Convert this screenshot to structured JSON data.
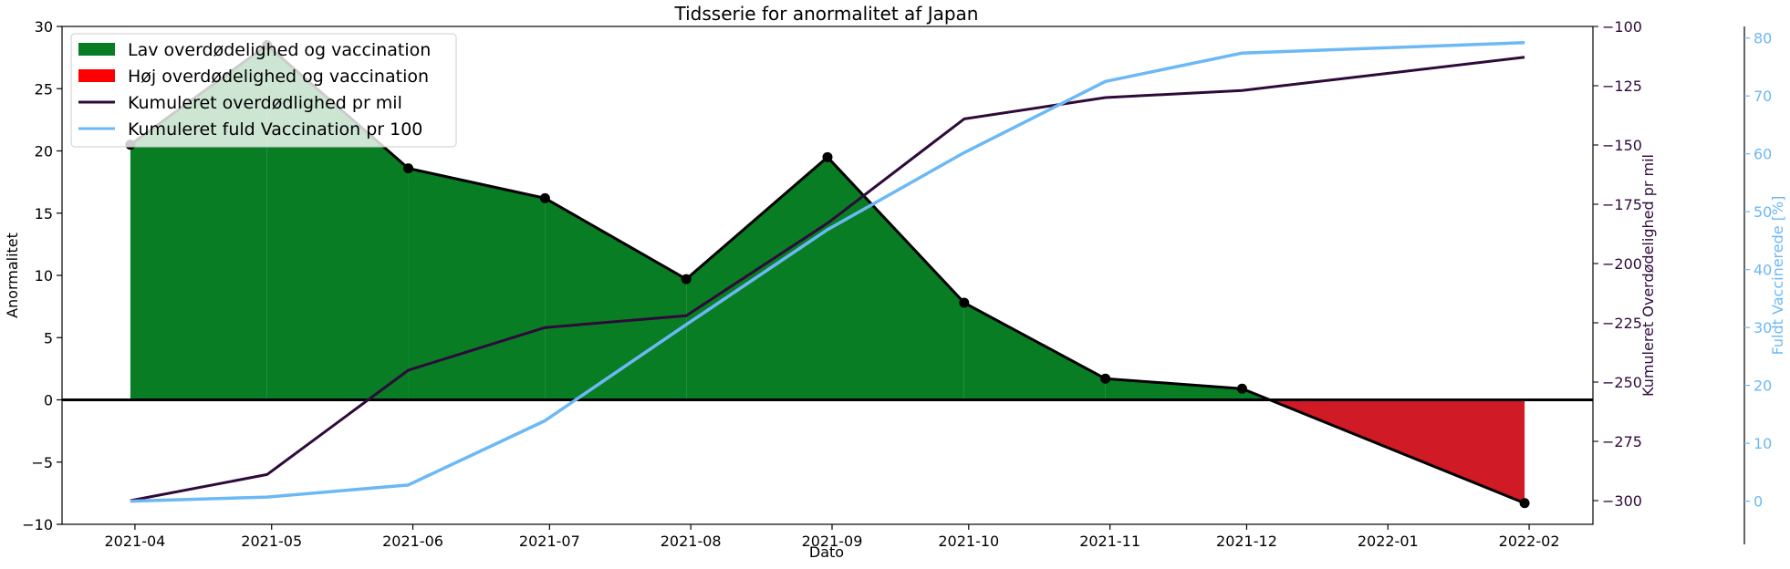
{
  "chart_data": {
    "type": "area",
    "title": "Tidsserie for anormalitet af Japan",
    "xlabel": "Dato",
    "ylabel": "Anormalitet",
    "y2label": "Kumuleret Overdødelighed pr mil",
    "y3label": "Fuldt Vaccinerede [%]",
    "xlim": [
      "2021-03-16",
      "2022-02-15"
    ],
    "ylim": [
      -10,
      30
    ],
    "y2lim": [
      -310,
      -100
    ],
    "y3lim": [
      -4,
      82
    ],
    "x_ticks": [
      "2021-04",
      "2021-05",
      "2021-06",
      "2021-07",
      "2021-08",
      "2021-09",
      "2021-10",
      "2021-11",
      "2021-12",
      "2022-01",
      "2022-02"
    ],
    "y_ticks": [
      -10,
      -5,
      0,
      5,
      10,
      15,
      20,
      25,
      30
    ],
    "y2_ticks": [
      -300,
      -275,
      -250,
      -225,
      -200,
      -175,
      -150,
      -125,
      -100
    ],
    "y3_ticks": [
      0,
      10,
      20,
      30,
      40,
      50,
      60,
      70,
      80
    ],
    "x": [
      "2021-03-31",
      "2021-04-30",
      "2021-05-31",
      "2021-06-30",
      "2021-07-31",
      "2021-08-31",
      "2021-09-30",
      "2021-10-31",
      "2021-11-30",
      "2021-12-31",
      "2022-01-31"
    ],
    "series": [
      {
        "name": "Anormalitet",
        "axis": "left",
        "color": "#000000",
        "values": [
          20.5,
          28.5,
          18.6,
          16.2,
          9.7,
          19.5,
          7.8,
          1.7,
          0.9,
          null,
          -8.3
        ]
      },
      {
        "name": "Kumuleret overdødlighed pr mil",
        "axis": "right",
        "color": "#2e0a3a",
        "values": [
          -300,
          -289,
          -245,
          -227,
          -222,
          -183,
          -139,
          -130,
          -127,
          -120,
          -113
        ]
      },
      {
        "name": "Kumuleret fuld Vaccination pr 100",
        "axis": "far-right",
        "color": "#6cb8f5",
        "values": [
          0,
          0.7,
          2.8,
          13.9,
          30.5,
          46.9,
          60.2,
          72.5,
          77.4,
          78.3,
          79.2
        ]
      }
    ],
    "fills": [
      {
        "name": "Lav overdødelighed og vaccination",
        "color": "#087d24"
      },
      {
        "name": "Høj overdødelighed og vaccination",
        "color": "#d01a26"
      }
    ],
    "legend": {
      "placement": "top-left",
      "entries": [
        {
          "label": "Lav overdødelighed og vaccination",
          "kind": "patch",
          "color": "#087d24"
        },
        {
          "label": "Høj overdødelighed og vaccination",
          "kind": "patch",
          "color": "#ff0000"
        },
        {
          "label": "Kumuleret overdødlighed pr mil",
          "kind": "line",
          "color": "#2e0a3a"
        },
        {
          "label": "Kumuleret fuld Vaccination pr 100",
          "kind": "line",
          "color": "#6cb8f5"
        }
      ]
    },
    "grid": false,
    "colors": {
      "axis2": "#2e0a3a",
      "axis3": "#6cb8f5",
      "zero_line": "#000000"
    }
  }
}
